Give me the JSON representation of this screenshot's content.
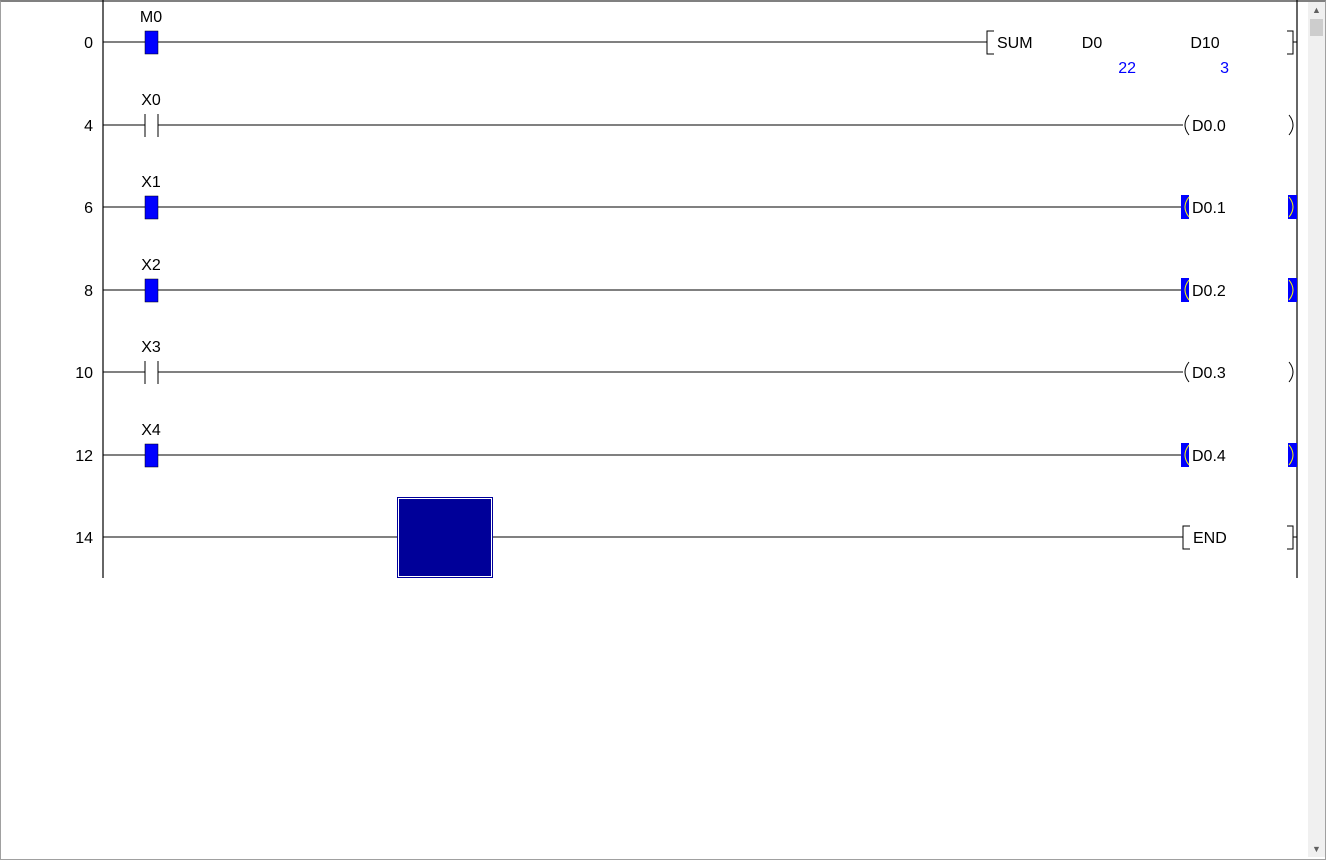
{
  "colors": {
    "active": "#0000ff",
    "active_arc": "#ffff00",
    "value": "#0000ff",
    "cursor": "#000099",
    "line": "#000000"
  },
  "rungs": [
    {
      "step": "0",
      "contact": {
        "label": "M0",
        "active": true
      },
      "output": {
        "type": "instruction",
        "name": "SUM",
        "operands": [
          {
            "label": "D0",
            "value": "22"
          },
          {
            "label": "D10",
            "value": "3"
          }
        ]
      }
    },
    {
      "step": "4",
      "contact": {
        "label": "X0",
        "active": false
      },
      "output": {
        "type": "coil",
        "label": "D0.0",
        "active": false
      }
    },
    {
      "step": "6",
      "contact": {
        "label": "X1",
        "active": true
      },
      "output": {
        "type": "coil",
        "label": "D0.1",
        "active": true
      }
    },
    {
      "step": "8",
      "contact": {
        "label": "X2",
        "active": true
      },
      "output": {
        "type": "coil",
        "label": "D0.2",
        "active": true
      }
    },
    {
      "step": "10",
      "contact": {
        "label": "X3",
        "active": false
      },
      "output": {
        "type": "coil",
        "label": "D0.3",
        "active": false
      }
    },
    {
      "step": "12",
      "contact": {
        "label": "X4",
        "active": true
      },
      "output": {
        "type": "coil",
        "label": "D0.4",
        "active": true
      }
    },
    {
      "step": "14",
      "contact": null,
      "cursor": true,
      "output": {
        "type": "instruction",
        "name": "END",
        "operands": []
      }
    }
  ],
  "scrollbar": {
    "up_icon": "chevron-up-icon",
    "down_icon": "chevron-down-icon"
  }
}
